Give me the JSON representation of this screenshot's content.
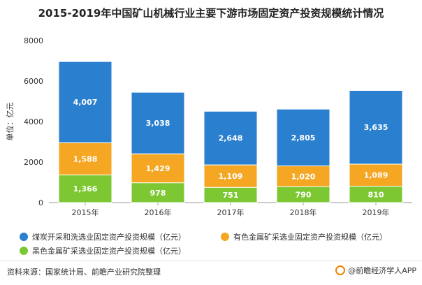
{
  "chart_data": {
    "type": "bar",
    "stacked": true,
    "title": "2015-2019年中国矿山机械行业主要下游市场固定资产投资规模统计情况",
    "ylabel": "单位：亿元",
    "xlabel": "",
    "categories": [
      "2015年",
      "2016年",
      "2017年",
      "2018年",
      "2019年"
    ],
    "yticks": [
      "0",
      "2000",
      "4000",
      "6000",
      "8000"
    ],
    "ylim": [
      0,
      8000
    ],
    "grid": false,
    "legend_position": "bottom",
    "series": [
      {
        "name": "黑色金属矿采选业固定资产投资规模（亿元）",
        "color": "#7dc832",
        "values": [
          1366,
          978,
          751,
          790,
          810
        ],
        "labels": [
          "1,366",
          "978",
          "751",
          "790",
          "810"
        ]
      },
      {
        "name": "有色金属矿采选业固定资产投资规模（亿元）",
        "color": "#f5a623",
        "values": [
          1588,
          1429,
          1109,
          1020,
          1089
        ],
        "labels": [
          "1,588",
          "1,429",
          "1,109",
          "1,020",
          "1,089"
        ]
      },
      {
        "name": "煤炭开采和洗选业固定资产投资规模（亿元）",
        "color": "#2a7fcf",
        "values": [
          4007,
          3038,
          2648,
          2805,
          3635
        ],
        "labels": [
          "4,007",
          "3,038",
          "2,648",
          "2,805",
          "3,635"
        ]
      }
    ]
  },
  "legend": {
    "coal": "煤炭开采和洗选业固定资产投资规模（亿元）",
    "nonferrous": "有色金属矿采选业固定资产投资规模（亿元）",
    "ferrous": "黑色金属矿采选业固定资产投资规模（亿元）"
  },
  "colors": {
    "coal": "#2a7fcf",
    "nonferrous": "#f5a623",
    "ferrous": "#7dc832",
    "brand": "#f08300"
  },
  "footer": {
    "source": "资料来源：国家统计局、前瞻产业研究院整理",
    "brand": "@前瞻经济学人APP",
    "brand_icon": "qianzhan-logo-icon"
  }
}
